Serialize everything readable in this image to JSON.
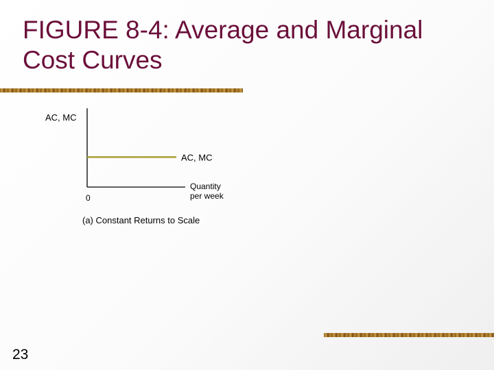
{
  "slide": {
    "title_line1": "FIGURE 8-4: Average and Marginal",
    "title_line2": "Cost Curves",
    "page_number": "23"
  },
  "colors": {
    "title": "#6b0f3a",
    "curve": "#a8a032",
    "rule": "#9a6a1e"
  },
  "chart_data": {
    "type": "line",
    "title": "",
    "caption": "(a) Constant Returns to Scale",
    "ylabel": "AC, MC",
    "xlabel_line1": "Quantity",
    "xlabel_line2": "per week",
    "origin_label": "0",
    "xlim": [
      0,
      1
    ],
    "ylim": [
      0,
      1
    ],
    "series": [
      {
        "name": "AC, MC",
        "x": [
          0,
          1
        ],
        "values": [
          0.38,
          0.38
        ]
      }
    ]
  }
}
